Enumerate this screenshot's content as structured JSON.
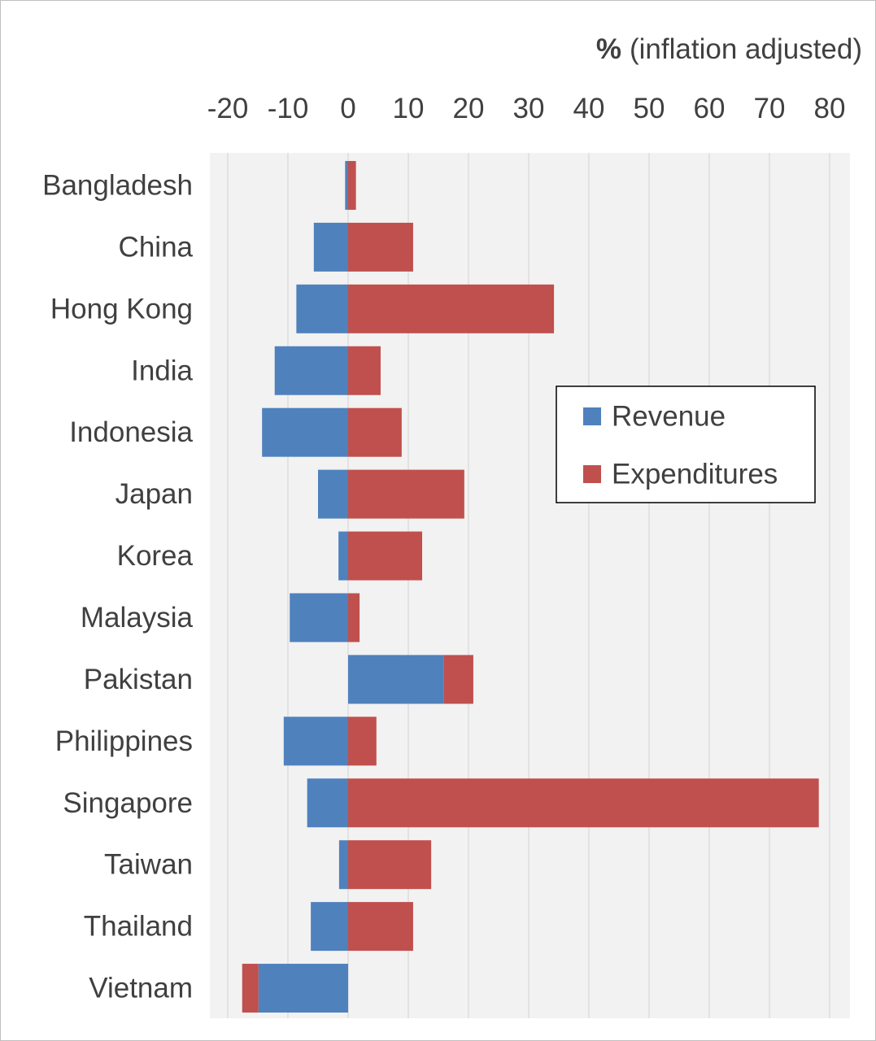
{
  "chart_data": {
    "type": "bar",
    "orientation": "horizontal",
    "stacked": true,
    "xlabel": {
      "unit": "%",
      "text": "(inflation adjusted)"
    },
    "x_axis_position": "top",
    "xlim": [
      -20,
      80
    ],
    "xticks": [
      -20,
      -10,
      0,
      10,
      20,
      30,
      40,
      50,
      60,
      70,
      80
    ],
    "grid": true,
    "legend_position": "right",
    "categories": [
      "Bangladesh",
      "China",
      "Hong Kong",
      "India",
      "Indonesia",
      "Japan",
      "Korea",
      "Malaysia",
      "Pakistan",
      "Philippines",
      "Singapore",
      "Taiwan",
      "Thailand",
      "Vietnam"
    ],
    "series": [
      {
        "name": "Revenue",
        "color": "#4F81BD",
        "values": [
          -0.5,
          -5.7,
          -8.6,
          -12.2,
          -14.3,
          -5.0,
          -1.6,
          -9.7,
          15.9,
          -10.7,
          -6.8,
          -1.5,
          -6.2,
          -14.9
        ]
      },
      {
        "name": "Expenditures",
        "color": "#C0504D",
        "values": [
          1.3,
          10.8,
          34.2,
          5.4,
          8.9,
          19.3,
          12.3,
          1.9,
          4.9,
          4.7,
          78.2,
          13.8,
          10.8,
          -2.7
        ]
      }
    ]
  }
}
